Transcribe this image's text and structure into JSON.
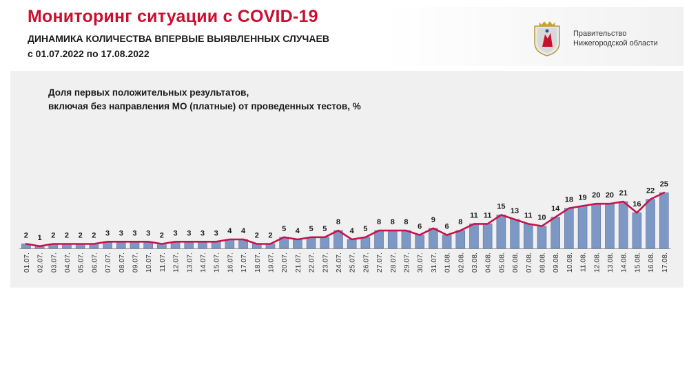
{
  "header": {
    "title": "Мониторинг ситуации с COVID-19",
    "subtitle": "ДИНАМИКА КОЛИЧЕСТВА ВПЕРВЫЕ ВЫЯВЛЕННЫХ СЛУЧАЕВ",
    "period": "с 01.07.2022 по 17.08.2022",
    "org_line1": "Правительство",
    "org_line2": "Нижегородской области"
  },
  "colors": {
    "title": "#c8102e",
    "bar": "#7e98c6",
    "bar_edge": "#5a73a0",
    "line": "#c8124b",
    "panel": "#f0f0f0"
  },
  "chart_data": {
    "type": "bar",
    "title_line1": "Доля первых положительных результатов,",
    "title_line2": "включая без направления МО (платные) от проведенных тестов, %",
    "categories": [
      "01.07.",
      "02.07.",
      "03.07.",
      "04.07.",
      "05.07.",
      "06.07.",
      "07.07.",
      "08.07.",
      "09.07.",
      "10.07.",
      "11.07.",
      "12.07.",
      "13.07.",
      "14.07.",
      "15.07.",
      "16.07.",
      "17.07.",
      "18.07.",
      "19.07.",
      "20.07.",
      "21.07.",
      "22.07.",
      "23.07.",
      "24.07.",
      "25.07.",
      "26.07.",
      "27.07.",
      "28.07.",
      "29.07.",
      "30.07.",
      "31.07.",
      "01.08.",
      "02.08.",
      "03.08.",
      "04.08.",
      "05.08.",
      "06.08.",
      "07.08.",
      "08.08.",
      "09.08.",
      "10.08.",
      "11.08.",
      "12.08.",
      "13.08.",
      "14.08.",
      "15.08.",
      "16.08.",
      "17.08."
    ],
    "values": [
      2,
      1,
      2,
      2,
      2,
      2,
      3,
      3,
      3,
      3,
      2,
      3,
      3,
      3,
      3,
      4,
      4,
      2,
      2,
      5,
      4,
      5,
      5,
      8,
      4,
      5,
      8,
      8,
      8,
      6,
      9,
      6,
      8,
      11,
      11,
      15,
      13,
      11,
      10,
      14,
      18,
      19,
      20,
      20,
      21,
      16,
      22,
      25
    ],
    "overlay_line": true,
    "data_labels": true,
    "grid": false,
    "legend": "none",
    "ylim": [
      0,
      27
    ]
  }
}
